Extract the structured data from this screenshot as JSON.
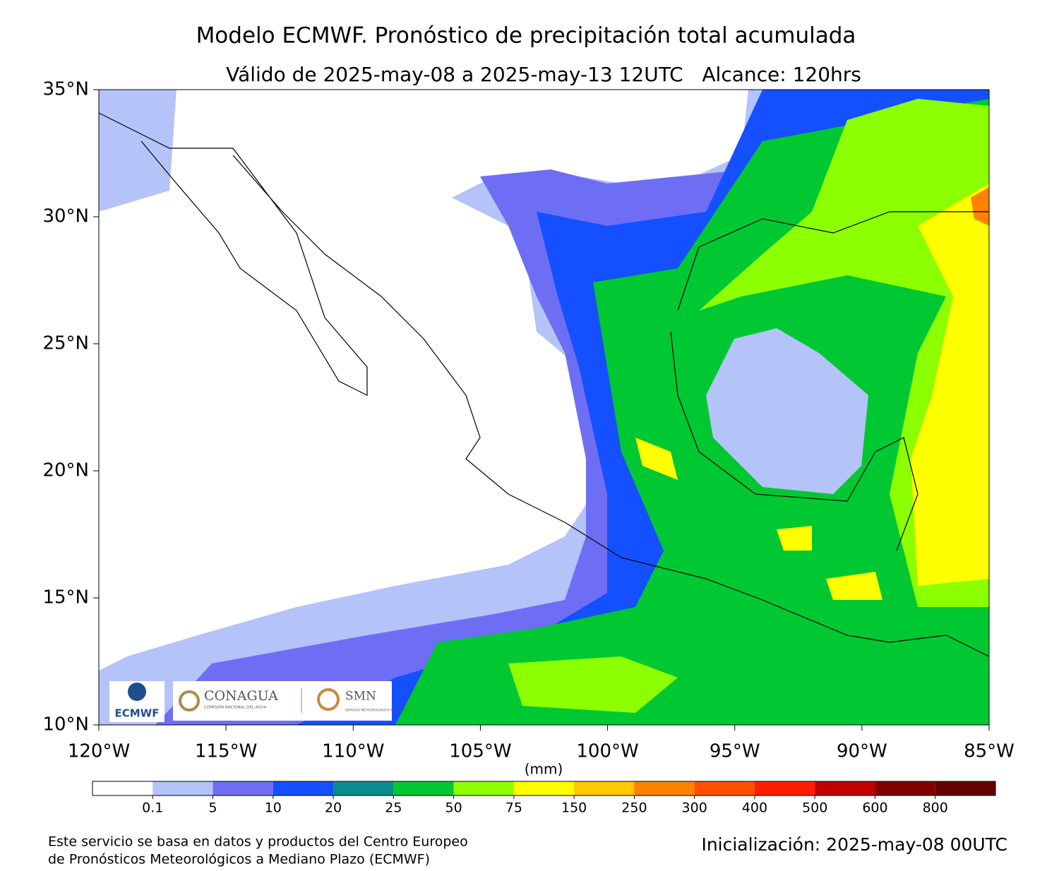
{
  "map": {
    "title": "Modelo ECMWF. Pronóstico de precipitación total acumulada",
    "subtitle": "Válido de 2025-may-08 a 2025-may-13 12UTC   Alcance: 120hrs",
    "xlim": [
      -120,
      -85
    ],
    "ylim": [
      10,
      35
    ],
    "xticks": [
      {
        "value": -120,
        "label": "120°W"
      },
      {
        "value": -115,
        "label": "115°W"
      },
      {
        "value": -110,
        "label": "110°W"
      },
      {
        "value": -105,
        "label": "105°W"
      },
      {
        "value": -100,
        "label": "100°W"
      },
      {
        "value": -95,
        "label": "95°W"
      },
      {
        "value": -90,
        "label": "90°W"
      },
      {
        "value": -85,
        "label": "85°W"
      }
    ],
    "yticks": [
      {
        "value": 10,
        "label": "10°N"
      },
      {
        "value": 15,
        "label": "15°N"
      },
      {
        "value": 20,
        "label": "20°N"
      },
      {
        "value": 25,
        "label": "25°N"
      },
      {
        "value": 30,
        "label": "30°N"
      },
      {
        "value": 35,
        "label": "35°N"
      }
    ],
    "colorbar": {
      "unit": "(mm)",
      "levels": [
        0.1,
        5,
        10,
        20,
        25,
        50,
        75,
        150,
        250,
        300,
        400,
        500,
        600,
        800
      ],
      "colors": [
        "#ffffff",
        "#b4c3f8",
        "#6e6ef5",
        "#1450ff",
        "#0a8c8c",
        "#00c832",
        "#8cff00",
        "#ffff00",
        "#ffc800",
        "#ff8200",
        "#ff5000",
        "#ff1e00",
        "#c00000",
        "#800000",
        "#640000"
      ]
    },
    "logos": {
      "ecmwf": "ECMWF",
      "conagua": "CONAGUA",
      "conagua_sub": "COMISIÓN NACIONAL DEL AGUA",
      "smn": "SMN",
      "smn_sub": "SERVICIO METEOROLÓGICO NACIONAL"
    },
    "footer": {
      "line1": "Este servicio se basa en datos y productos del Centro Europeo",
      "line2": "de Pronósticos Meteorológicos a Mediano Plazo (ECMWF)",
      "init": "Inicialización: 2025-may-08 00UTC"
    }
  }
}
